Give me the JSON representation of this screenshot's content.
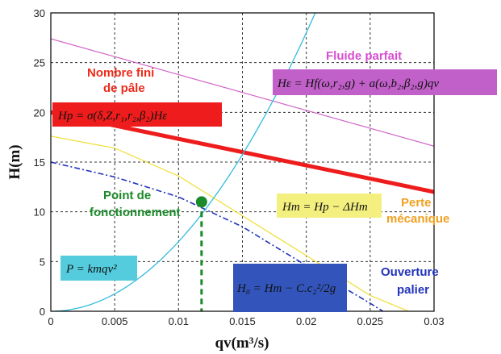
{
  "chart_data": {
    "type": "line",
    "xlabel": "qv(m³/s)",
    "ylabel": "H(m)",
    "xlim": [
      0,
      0.03
    ],
    "ylim": [
      0,
      30
    ],
    "x_ticks": [
      "0",
      "0.005",
      "0.01",
      "0.015",
      "0.02",
      "0.025",
      "0.03"
    ],
    "y_ticks": [
      "0",
      "5",
      "10",
      "15",
      "20",
      "25",
      "30"
    ],
    "grid": true,
    "series": [
      {
        "key": "fluide",
        "color": "#d066c8",
        "x": [
          0,
          0.03
        ],
        "y": [
          27.4,
          16.6
        ]
      },
      {
        "key": "nombre",
        "color": "#ee1c1c",
        "x": [
          0,
          0.03
        ],
        "y": [
          20,
          12
        ]
      },
      {
        "key": "perte",
        "color": "#f0e040",
        "x": [
          0,
          0.005,
          0.01,
          0.015,
          0.02,
          0.025,
          0.028
        ],
        "y": [
          17.6,
          16.4,
          13.6,
          9.6,
          5.6,
          1.6,
          0
        ]
      },
      {
        "key": "ouverture",
        "color": "#2233bb",
        "x": [
          0,
          0.005,
          0.01,
          0.015,
          0.02,
          0.025,
          0.026
        ],
        "y": [
          15,
          13.5,
          11.5,
          8.5,
          4.6,
          0.8,
          0
        ]
      },
      {
        "key": "parabole",
        "color": "#33bbdd",
        "x": [
          0,
          0.003,
          0.006,
          0.009,
          0.0118,
          0.015,
          0.018,
          0.0207
        ],
        "y": [
          0,
          0.7,
          2.8,
          6.3,
          11,
          17.6,
          25.5,
          30
        ]
      }
    ],
    "operating_point": {
      "x": 0.0118,
      "y": 11
    },
    "annotations": {
      "fluide_parfait": "Fluide parfait",
      "nombre_fini_1": "Nombre fini",
      "nombre_fini_2": "de pâle",
      "perte_1": "Perte",
      "perte_2": "mécanique",
      "point_1": "Point de",
      "point_2": "fonctionnement",
      "ouverture_1": "Ouverture",
      "ouverture_2": "palier"
    },
    "equations": {
      "he": "Hε = Hf(ω,r₂,g) + a(ω,b₂,β₂,g)qv",
      "hp": "Hp = σ(δ,Z,r₁,r₂,β₂)Hε",
      "hm": "Hm = Hp − ΔHm",
      "h0": "H₀ = Hm − C.c₂²/2g",
      "p": "P = kmqv²"
    },
    "colors": {
      "fluide_label": "#d84ed0",
      "nombre_label": "#ee2a1a",
      "perte_label": "#f0a020",
      "point_label": "#1a8a2a",
      "ouverture_label": "#2233bb",
      "eq_he_bg": "#c060c8",
      "eq_hp_bg": "#ee1c1c",
      "eq_hm_bg": "#f4f080",
      "eq_h0_bg": "#3355bb",
      "eq_p_bg": "#55ccdd"
    }
  }
}
